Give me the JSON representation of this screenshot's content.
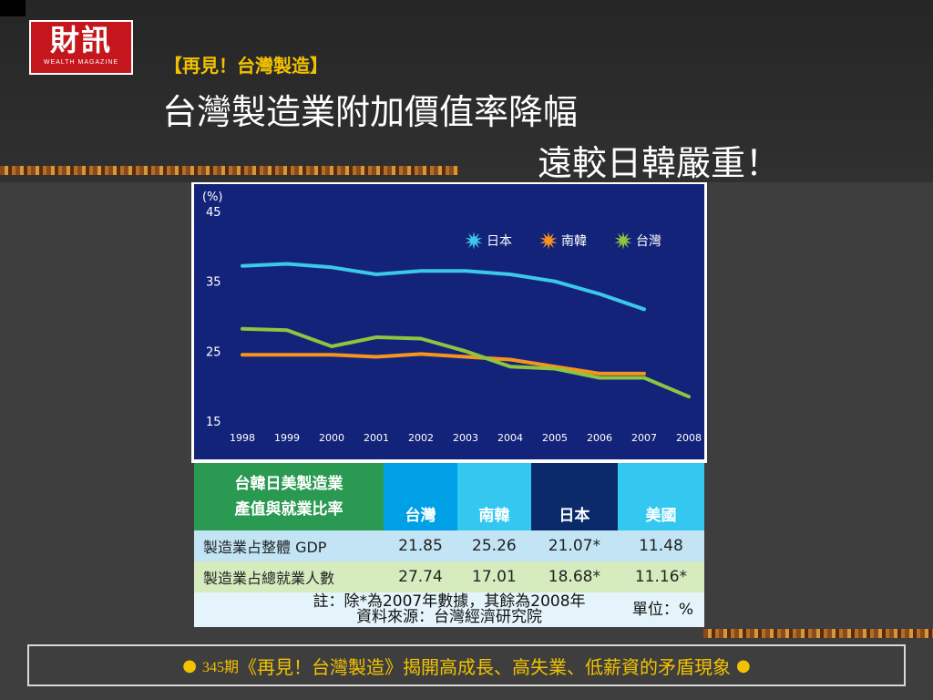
{
  "logo": {
    "text_zh": "財訊",
    "text_en": "WEALTH MAGAZINE"
  },
  "header": {
    "eyebrow": "【再見！台灣製造】",
    "title_line1": "台灣製造業附加價值率降幅",
    "title_line2": "遠較日韓嚴重！"
  },
  "chart_data": {
    "type": "line",
    "ylabel": "(%)",
    "ylim": [
      15,
      45
    ],
    "yticks": [
      15,
      25,
      35,
      45
    ],
    "x": [
      "1998",
      "1999",
      "2000",
      "2001",
      "2002",
      "2003",
      "2004",
      "2005",
      "2006",
      "2007",
      "2008"
    ],
    "legend_position": "top-right",
    "series": [
      {
        "name": "日本",
        "color": "#3cc8e8",
        "values": [
          37.2,
          37.5,
          37.0,
          36.0,
          36.5,
          36.5,
          36.0,
          35.0,
          33.2,
          31.0,
          null
        ]
      },
      {
        "name": "南韓",
        "color": "#f7941d",
        "values": [
          24.5,
          24.5,
          24.5,
          24.2,
          24.6,
          24.2,
          23.8,
          22.8,
          21.8,
          21.8,
          null
        ]
      },
      {
        "name": "台灣",
        "color": "#8cc63f",
        "values": [
          28.2,
          28.0,
          25.7,
          27.0,
          26.8,
          25.0,
          22.8,
          22.5,
          21.2,
          21.2,
          18.5
        ]
      }
    ]
  },
  "table": {
    "title_line1": "台韓日美製造業",
    "title_line2": "產值與就業比率",
    "columns": [
      "台灣",
      "南韓",
      "日本",
      "美國"
    ],
    "rows": [
      {
        "label": "製造業占整體 GDP",
        "values": [
          "21.85",
          "25.26",
          "21.07*",
          "11.48"
        ]
      },
      {
        "label": "製造業占總就業人數",
        "values": [
          "27.74",
          "17.01",
          "18.68*",
          "11.16*"
        ]
      }
    ],
    "note": "註：除*為2007年數據，其餘為2008年",
    "source": "資料來源：台灣經濟研究院",
    "unit": "單位：%"
  },
  "caption": {
    "bullet": "●",
    "issue": "345期",
    "text": "《再見！台灣製造》揭開高成長、高失業、低薪資的矛盾現象"
  }
}
